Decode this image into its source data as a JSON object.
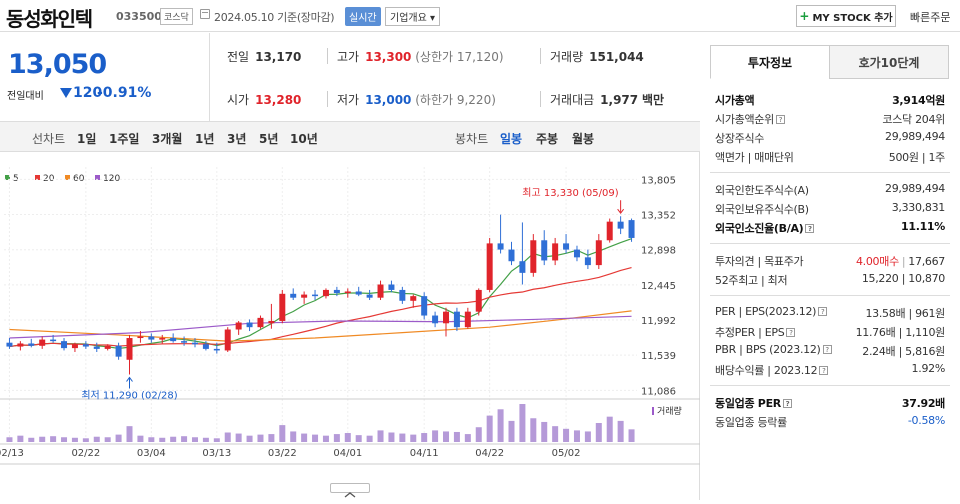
{
  "header": {
    "name": "동성화인텍",
    "code": "033500",
    "market": "코스닥",
    "date": "2024.05.10 기준(장마감)",
    "realtime": "실시간",
    "corp": "기업개요 ▾",
    "mystock": "MY STOCK 추가",
    "quick_order": "빠른주문"
  },
  "price": {
    "current": "13,050",
    "label": "전일대비",
    "change": "120",
    "pct": "-0.91%"
  },
  "stats": {
    "prev_l": "전일",
    "prev": "13,170",
    "high_l": "고가",
    "high": "13,300",
    "high_lim": "(상한가 17,120)",
    "vol_l": "거래량",
    "vol": "151,044",
    "open_l": "시가",
    "open": "13,280",
    "low_l": "저가",
    "low": "13,000",
    "low_lim": "(하한가 9,220)",
    "amt_l": "거래대금",
    "amt": "1,977",
    "amt_u": "백만"
  },
  "chart_tabs": {
    "line": "선차트",
    "d1": "1일",
    "w1": "1주일",
    "m3": "3개월",
    "y1": "1년",
    "y3": "3년",
    "y5": "5년",
    "y10": "10년",
    "candle": "봉차트",
    "day": "일봉",
    "week": "주봉",
    "month": "월봉"
  },
  "chart_data": {
    "type": "candlestick",
    "legend": [
      "5",
      "20",
      "60",
      "120"
    ],
    "legend_colors": [
      "#43a047",
      "#e53935",
      "#f08a24",
      "#9c5bc9"
    ],
    "yticks": [
      13805,
      13352,
      12898,
      12445,
      11992,
      11539,
      11086
    ],
    "ylim": [
      11000,
      13900
    ],
    "xticks": [
      "02/13",
      "02/22",
      "03/04",
      "03/13",
      "03/22",
      "04/01",
      "04/11",
      "04/22",
      "05/02"
    ],
    "max_label": "최고 13,330 (05/09)",
    "min_label": "최저 11,290 (02/28)",
    "volume_label": "거래량",
    "up_color": "#e0242b",
    "down_color": "#2f6fd6",
    "candles": [
      [
        11700,
        11760,
        11620,
        11650
      ],
      [
        11650,
        11720,
        11600,
        11690
      ],
      [
        11690,
        11750,
        11640,
        11660
      ],
      [
        11660,
        11780,
        11620,
        11740
      ],
      [
        11740,
        11800,
        11700,
        11720
      ],
      [
        11720,
        11760,
        11600,
        11630
      ],
      [
        11630,
        11700,
        11580,
        11680
      ],
      [
        11680,
        11720,
        11620,
        11650
      ],
      [
        11650,
        11700,
        11580,
        11620
      ],
      [
        11620,
        11680,
        11600,
        11660
      ],
      [
        11660,
        11700,
        11480,
        11520
      ],
      [
        11480,
        11800,
        11290,
        11760
      ],
      [
        11760,
        11850,
        11700,
        11780
      ],
      [
        11780,
        11820,
        11700,
        11740
      ],
      [
        11740,
        11800,
        11690,
        11760
      ],
      [
        11760,
        11820,
        11700,
        11720
      ],
      [
        11720,
        11780,
        11660,
        11700
      ],
      [
        11700,
        11760,
        11640,
        11680
      ],
      [
        11680,
        11720,
        11600,
        11620
      ],
      [
        11620,
        11700,
        11560,
        11600
      ],
      [
        11600,
        11900,
        11580,
        11870
      ],
      [
        11870,
        11980,
        11800,
        11960
      ],
      [
        11960,
        12000,
        11850,
        11900
      ],
      [
        11900,
        12050,
        11880,
        12020
      ],
      [
        11950,
        12200,
        11880,
        11980
      ],
      [
        11980,
        12380,
        11950,
        12330
      ],
      [
        12330,
        12400,
        12250,
        12280
      ],
      [
        12280,
        12360,
        12200,
        12320
      ],
      [
        12320,
        12380,
        12250,
        12300
      ],
      [
        12300,
        12400,
        12270,
        12380
      ],
      [
        12380,
        12420,
        12300,
        12340
      ],
      [
        12340,
        12400,
        12280,
        12360
      ],
      [
        12360,
        12420,
        12300,
        12320
      ],
      [
        12320,
        12380,
        12250,
        12280
      ],
      [
        12280,
        12500,
        12250,
        12450
      ],
      [
        12450,
        12500,
        12350,
        12380
      ],
      [
        12380,
        12420,
        12200,
        12240
      ],
      [
        12240,
        12320,
        12150,
        12300
      ],
      [
        12300,
        12350,
        12000,
        12050
      ],
      [
        12050,
        12100,
        11900,
        11950
      ],
      [
        11950,
        12150,
        11780,
        12100
      ],
      [
        12100,
        12150,
        11850,
        11900
      ],
      [
        11900,
        12150,
        11880,
        12100
      ],
      [
        12100,
        12400,
        12050,
        12380
      ],
      [
        12380,
        13050,
        12350,
        12980
      ],
      [
        12980,
        13350,
        12850,
        12900
      ],
      [
        12900,
        13000,
        12700,
        12750
      ],
      [
        12750,
        13250,
        12450,
        12600
      ],
      [
        12600,
        13100,
        12550,
        13020
      ],
      [
        13020,
        13150,
        12700,
        12760
      ],
      [
        12760,
        13050,
        12700,
        12980
      ],
      [
        12980,
        13100,
        12850,
        12900
      ],
      [
        12900,
        12950,
        12750,
        12800
      ],
      [
        12800,
        12900,
        12650,
        12700
      ],
      [
        12700,
        13100,
        12650,
        13020
      ],
      [
        13020,
        13300,
        12990,
        13260
      ],
      [
        13260,
        13330,
        13100,
        13170
      ],
      [
        13280,
        13300,
        13000,
        13050
      ]
    ],
    "volume": [
      9,
      12,
      8,
      10,
      11,
      9,
      8,
      7,
      10,
      9,
      14,
      30,
      12,
      9,
      8,
      10,
      11,
      9,
      8,
      7,
      18,
      16,
      12,
      14,
      15,
      32,
      20,
      16,
      14,
      12,
      15,
      17,
      13,
      12,
      22,
      18,
      16,
      14,
      17,
      22,
      20,
      19,
      15,
      28,
      50,
      62,
      40,
      72,
      45,
      38,
      30,
      25,
      22,
      20,
      36,
      48,
      40,
      24
    ]
  },
  "right": {
    "tab1": "투자정보",
    "tab2": "호가10단계",
    "rows": [
      {
        "k": "시가총액",
        "v": "3,914억원"
      },
      {
        "k": "시가총액순위",
        "v": "코스닥  204위"
      },
      {
        "k": "상장주식수",
        "v": "29,989,494"
      },
      {
        "k": "액면가 | 매매단위",
        "v": "500원 | 1주"
      },
      {
        "k": "외국인한도주식수(A)",
        "v": "29,989,494"
      },
      {
        "k": "외국인보유주식수(B)",
        "v": "3,330,831"
      },
      {
        "k": "외국인소진율(B/A)",
        "v": "11.11%"
      },
      {
        "k": "투자의견 | 목표주가",
        "v1": "4.00매수",
        "v2": "17,667"
      },
      {
        "k": "52주최고 | 최저",
        "v": "15,220 | 10,870"
      },
      {
        "k": "PER | EPS(2023.12)",
        "v": "13.58배 | 961원"
      },
      {
        "k": "추정PER | EPS",
        "v": "11.76배 | 1,110원"
      },
      {
        "k": "PBR | BPS (2023.12)",
        "v": "2.24배 | 5,816원"
      },
      {
        "k": "배당수익률 | 2023.12",
        "v": "1.92%"
      },
      {
        "k": "동일업종 PER",
        "v": "37.92배"
      },
      {
        "k": "동일업종 등락률",
        "v": "-0.58%"
      }
    ]
  }
}
